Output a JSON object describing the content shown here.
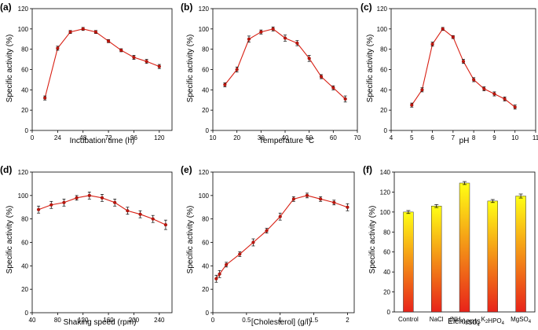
{
  "chart_data": [
    {
      "id": "a",
      "panel_label": "(a)",
      "type": "line",
      "xlabel": "Incubation time (h)",
      "ylabel": "Specific activity (%)",
      "xlim": [
        0,
        132
      ],
      "ylim": [
        0,
        120
      ],
      "xticks": [
        0,
        24,
        48,
        72,
        96,
        120
      ],
      "yticks": [
        0,
        20,
        40,
        60,
        80,
        100,
        120
      ],
      "x": [
        12,
        24,
        36,
        48,
        60,
        72,
        84,
        96,
        108,
        120
      ],
      "y": [
        32,
        81,
        97,
        100,
        97,
        88,
        79,
        72,
        68,
        63
      ],
      "err": [
        2,
        2,
        1.5,
        1.5,
        1.5,
        1.5,
        1.5,
        2,
        2,
        2
      ]
    },
    {
      "id": "b",
      "panel_label": "(b)",
      "type": "line",
      "xlabel": "Temperature °C",
      "ylabel": "Specific activity (%)",
      "xlim": [
        10,
        70
      ],
      "ylim": [
        0,
        120
      ],
      "xticks": [
        10,
        20,
        30,
        40,
        50,
        60,
        70
      ],
      "yticks": [
        0,
        20,
        40,
        60,
        80,
        100,
        120
      ],
      "x": [
        15,
        20,
        25,
        30,
        35,
        40,
        45,
        50,
        55,
        60,
        65
      ],
      "y": [
        45,
        60,
        90,
        97,
        100,
        91,
        86,
        71,
        53,
        42,
        31
      ],
      "err": [
        2,
        2.5,
        3,
        2,
        2,
        3,
        2.5,
        3,
        2,
        2,
        3
      ]
    },
    {
      "id": "c",
      "panel_label": "(c)",
      "type": "line",
      "xlabel": "pH",
      "ylabel": "Specific activity (%)",
      "xlim": [
        4,
        11
      ],
      "ylim": [
        0,
        120
      ],
      "xticks": [
        4,
        5,
        6,
        7,
        8,
        9,
        10,
        11
      ],
      "yticks": [
        0,
        20,
        40,
        60,
        80,
        100,
        120
      ],
      "x": [
        5,
        5.5,
        6,
        6.5,
        7,
        7.5,
        8,
        8.5,
        9,
        9.5,
        10
      ],
      "y": [
        25,
        40,
        85,
        100,
        92,
        68,
        50,
        41,
        36,
        31,
        23
      ],
      "err": [
        2,
        2,
        2,
        1.5,
        1.5,
        2,
        2,
        2,
        2,
        2,
        2
      ]
    },
    {
      "id": "d",
      "panel_label": "(d)",
      "type": "line",
      "xlabel": "Shaking speed (rpm)",
      "ylabel": "Specific activity (%)",
      "xlim": [
        40,
        260
      ],
      "ylim": [
        0,
        120
      ],
      "xticks": [
        40,
        80,
        120,
        160,
        200,
        240
      ],
      "yticks": [
        0,
        20,
        40,
        60,
        80,
        100,
        120
      ],
      "x": [
        50,
        70,
        90,
        110,
        130,
        150,
        170,
        190,
        210,
        230,
        250
      ],
      "y": [
        88,
        92,
        94,
        98,
        100,
        98,
        94,
        87,
        84,
        80,
        75
      ],
      "err": [
        3,
        3,
        3,
        2,
        3,
        3,
        3,
        3,
        3,
        3,
        4
      ]
    },
    {
      "id": "e",
      "panel_label": "(e)",
      "type": "line",
      "xlabel": "[Cholesterol] (g/l)",
      "ylabel": "Specific activity (%)",
      "xlim": [
        0,
        2.1
      ],
      "ylim": [
        0,
        120
      ],
      "xticks": [
        0,
        0.5,
        1,
        1.5,
        2
      ],
      "ytick_labels_override": null,
      "yticks": [
        0,
        20,
        40,
        60,
        80,
        100,
        120
      ],
      "x": [
        0.05,
        0.1,
        0.2,
        0.4,
        0.6,
        0.8,
        1.0,
        1.2,
        1.4,
        1.6,
        1.8,
        2.0
      ],
      "y": [
        29,
        33,
        41,
        50,
        60,
        70,
        82,
        97,
        100,
        97,
        94,
        90
      ],
      "err": [
        3,
        3,
        2,
        2,
        3,
        2,
        3,
        2,
        2,
        2,
        2,
        3
      ]
    },
    {
      "id": "f",
      "panel_label": "(f)",
      "type": "bar",
      "xlabel": "Elements",
      "ylabel": "Specific activity (%)",
      "ylim": [
        0,
        140
      ],
      "yticks": [
        0,
        20,
        40,
        60,
        80,
        100,
        120,
        140
      ],
      "categories": [
        "Control",
        "NaCl",
        "(NH4)2SO4",
        "K2HPO4",
        "MgSO4"
      ],
      "values": [
        100,
        106,
        129,
        111,
        116
      ],
      "err": [
        1.5,
        1.5,
        1.5,
        1.5,
        2
      ],
      "gradient": {
        "top": "#ffff14",
        "bottom": "#e8231a"
      }
    }
  ],
  "colors": {
    "series_line": "#d81e12",
    "marker": "#c0150c",
    "error_bar": "#000000"
  }
}
